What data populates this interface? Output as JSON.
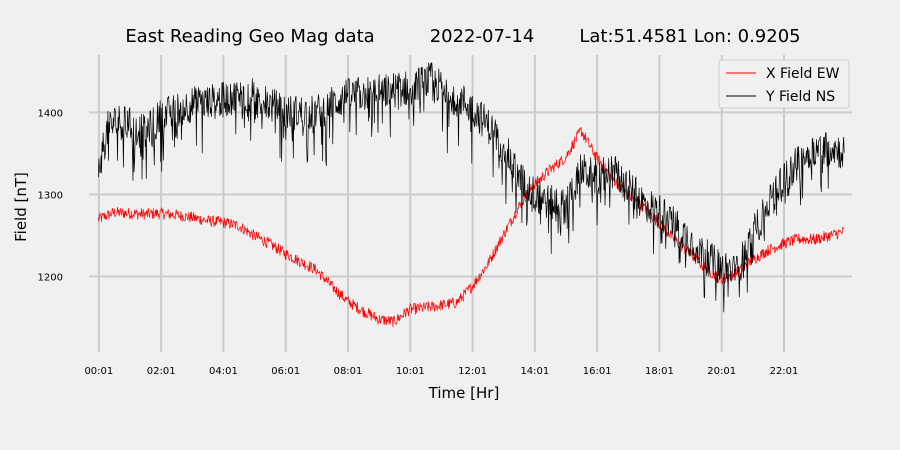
{
  "chart_data": {
    "type": "line",
    "title": {
      "station": "East Reading Geo Mag data",
      "date": "2022-07-14",
      "location": "Lat:51.4581  Lon: 0.9205"
    },
    "xlabel": "Time  [Hr]",
    "ylabel": "Field  [nT]",
    "xlim": [
      -0.3,
      24.2
    ],
    "ylim": [
      1108,
      1470
    ],
    "x_ticks": [
      {
        "value": 0.0167,
        "label": "00:01"
      },
      {
        "value": 2.0167,
        "label": "02:01"
      },
      {
        "value": 4.0167,
        "label": "04:01"
      },
      {
        "value": 6.0167,
        "label": "06:01"
      },
      {
        "value": 8.0167,
        "label": "08:01"
      },
      {
        "value": 10.0167,
        "label": "10:01"
      },
      {
        "value": 12.0167,
        "label": "12:01"
      },
      {
        "value": 14.0167,
        "label": "14:01"
      },
      {
        "value": 16.0167,
        "label": "16:01"
      },
      {
        "value": 18.0167,
        "label": "18:01"
      },
      {
        "value": 20.0167,
        "label": "20:01"
      },
      {
        "value": 22.0167,
        "label": "22:01"
      }
    ],
    "y_ticks": [
      {
        "value": 1200,
        "label": "1200"
      },
      {
        "value": 1300,
        "label": "1300"
      },
      {
        "value": 1400,
        "label": "1400"
      }
    ],
    "grid": true,
    "legend_position": "top-right",
    "series": [
      {
        "name": "X Field EW",
        "color": "#ff0000",
        "noise": 7,
        "x": [
          0,
          0.5,
          1,
          1.5,
          2,
          2.5,
          3,
          3.5,
          4,
          4.5,
          5,
          5.5,
          6,
          6.5,
          7,
          7.5,
          8,
          8.5,
          9,
          9.5,
          10,
          10.5,
          11,
          11.5,
          12,
          12.5,
          13,
          13.5,
          14,
          14.5,
          15,
          15.3,
          15.5,
          16,
          16.5,
          17,
          17.5,
          18,
          18.5,
          19,
          19.5,
          20,
          20.5,
          21,
          21.5,
          22,
          22.5,
          23,
          23.5,
          23.95
        ],
        "y": [
          1270,
          1278,
          1277,
          1276,
          1277,
          1275,
          1272,
          1268,
          1266,
          1262,
          1250,
          1240,
          1228,
          1218,
          1208,
          1188,
          1170,
          1158,
          1148,
          1145,
          1160,
          1162,
          1165,
          1168,
          1188,
          1215,
          1250,
          1285,
          1312,
          1330,
          1345,
          1365,
          1378,
          1345,
          1320,
          1300,
          1285,
          1265,
          1245,
          1228,
          1210,
          1196,
          1205,
          1220,
          1232,
          1240,
          1246,
          1245,
          1250,
          1255
        ]
      },
      {
        "name": "Y Field NS",
        "color": "#000000",
        "noise": 22,
        "x": [
          0,
          0.3,
          0.6,
          1,
          1.5,
          2,
          3,
          4,
          4.5,
          5,
          6,
          7,
          8,
          9,
          10,
          10.7,
          11,
          11.5,
          12,
          12.5,
          13,
          13.5,
          14,
          14.5,
          15,
          15.5,
          16,
          16.5,
          17,
          17.5,
          18,
          18.5,
          19,
          19.5,
          20,
          20.5,
          21,
          21.5,
          22,
          22.5,
          23,
          23.5,
          23.95
        ],
        "y": [
          1330,
          1380,
          1390,
          1385,
          1375,
          1395,
          1410,
          1415,
          1420,
          1420,
          1400,
          1400,
          1420,
          1425,
          1430,
          1440,
          1430,
          1420,
          1405,
          1385,
          1360,
          1320,
          1300,
          1290,
          1285,
          1330,
          1320,
          1330,
          1310,
          1290,
          1280,
          1265,
          1245,
          1225,
          1210,
          1205,
          1250,
          1285,
          1320,
          1340,
          1355,
          1360,
          1350
        ]
      }
    ]
  }
}
